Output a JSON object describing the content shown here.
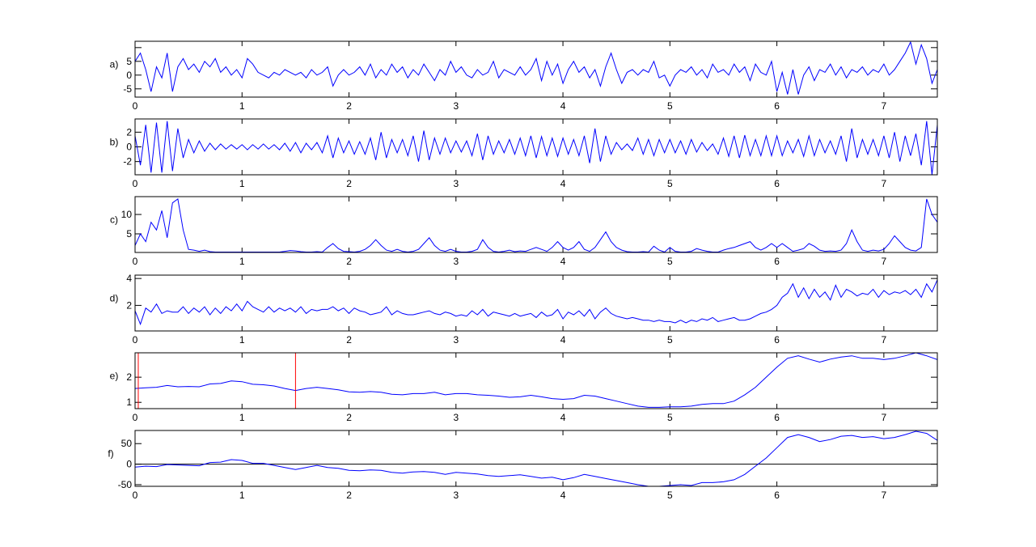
{
  "chart_data": [
    {
      "type": "line",
      "ylabel": "a)",
      "xlim": [
        0,
        7.5
      ],
      "ylim": [
        -8,
        12.3
      ],
      "xticks": [
        0,
        1,
        2,
        3,
        4,
        5,
        6,
        7
      ],
      "yticks": [
        -5,
        0,
        5
      ],
      "color": "#0000ff",
      "x_start": 0,
      "x_step": 0.05,
      "values": [
        5,
        8,
        2,
        -6,
        3,
        -1,
        8,
        -6,
        3,
        6,
        2,
        4,
        1,
        5,
        3,
        6,
        1,
        3,
        0,
        2,
        -1,
        6,
        4,
        1,
        0,
        -1,
        1,
        0,
        2,
        1,
        0,
        1,
        -1,
        2,
        0,
        1,
        3,
        -4,
        0,
        2,
        0,
        1,
        3,
        0,
        4,
        -1,
        2,
        0,
        4,
        1,
        3,
        -1,
        2,
        0,
        4,
        1,
        -2,
        2,
        0,
        5,
        1,
        3,
        0,
        -1,
        2,
        0,
        1,
        5,
        -1,
        2,
        1,
        0,
        3,
        0,
        2,
        6,
        -2,
        5,
        0,
        4,
        -3,
        2,
        5,
        1,
        3,
        -1,
        2,
        -4,
        3,
        8,
        2,
        -3,
        1,
        2,
        0,
        2,
        1,
        5,
        -1,
        0,
        -4,
        0,
        2,
        1,
        3,
        0,
        2,
        -1,
        4,
        1,
        2,
        0,
        4,
        1,
        3,
        -2,
        4,
        1,
        0,
        5,
        -6,
        1,
        -7,
        2,
        -7,
        0,
        3,
        -2,
        2,
        1,
        4,
        0,
        3,
        -1,
        2,
        1,
        3,
        0,
        2,
        1,
        4,
        0,
        2,
        5,
        8,
        12,
        4,
        11,
        6,
        -3,
        2
      ]
    },
    {
      "type": "line",
      "ylabel": "b)",
      "xlim": [
        0,
        7.5
      ],
      "ylim": [
        -3.8,
        3.8
      ],
      "xticks": [
        0,
        1,
        2,
        3,
        4,
        5,
        6,
        7
      ],
      "yticks": [
        -2,
        0,
        2
      ],
      "color": "#0000ff",
      "x_start": 0,
      "x_step": 0.05,
      "values": [
        1.5,
        -2.5,
        3,
        -3.5,
        3.3,
        -3.5,
        3.5,
        -3.3,
        2.5,
        -1.5,
        1,
        -0.8,
        0.8,
        -0.6,
        0.5,
        -0.4,
        0.4,
        -0.3,
        0.3,
        -0.3,
        0.3,
        -0.4,
        0.3,
        -0.3,
        0.4,
        -0.3,
        0.3,
        -0.4,
        0.5,
        -0.6,
        0.6,
        -0.8,
        0.5,
        -0.4,
        0.6,
        -0.8,
        1.5,
        -1.5,
        1.2,
        -0.8,
        0.8,
        -1,
        0.7,
        -1,
        1.2,
        -1.8,
        2,
        -1.5,
        1,
        -0.8,
        1,
        -1.2,
        1.5,
        -2,
        2.2,
        -1.8,
        1.2,
        -1,
        1.2,
        -0.8,
        0.8,
        -0.7,
        0.8,
        -1.2,
        1.8,
        -1.8,
        1.5,
        -1,
        0.8,
        -0.8,
        1,
        -1,
        1.2,
        -1.2,
        1.5,
        -1.5,
        1.4,
        -1.2,
        1.2,
        -1.3,
        1.2,
        -1,
        1,
        -1.2,
        1.5,
        -2.2,
        2.5,
        -2,
        1.5,
        -1,
        0.6,
        -0.4,
        0.4,
        -0.5,
        1.2,
        -1,
        1,
        -1.2,
        1,
        -0.8,
        1,
        -0.8,
        0.8,
        -1,
        1,
        -0.7,
        0.6,
        -0.5,
        0.4,
        -1,
        1.2,
        -1.3,
        1.5,
        -1.5,
        1.6,
        -1.2,
        1,
        -1.2,
        1.5,
        -1.2,
        1.5,
        -1.2,
        0.8,
        -0.8,
        1,
        -1.3,
        1.5,
        -1.2,
        1,
        -0.8,
        0.8,
        -1,
        1.5,
        -2,
        2.5,
        -1.5,
        1,
        -1,
        1,
        -1.2,
        1.5,
        -1.5,
        2,
        -2,
        1.5,
        -1.2,
        1.8,
        -2.5,
        3.5,
        -3.8,
        3
      ]
    },
    {
      "type": "line",
      "ylabel": "c)",
      "xlim": [
        0,
        7.5
      ],
      "ylim": [
        0.2,
        14.6
      ],
      "xticks": [
        0,
        1,
        2,
        3,
        4,
        5,
        6,
        7
      ],
      "yticks": [
        5,
        10
      ],
      "color": "#0000ff",
      "x_start": 0,
      "x_step": 0.05,
      "values": [
        2,
        5,
        3,
        8,
        6,
        11,
        4,
        13,
        14,
        6,
        1,
        0.8,
        0.5,
        0.8,
        0.4,
        0.3,
        0.3,
        0.3,
        0.3,
        0.3,
        0.3,
        0.3,
        0.3,
        0.3,
        0.3,
        0.3,
        0.3,
        0.3,
        0.5,
        0.7,
        0.6,
        0.4,
        0.3,
        0.3,
        0.4,
        0.3,
        1.5,
        2.5,
        1.2,
        0.5,
        0.4,
        0.3,
        0.5,
        1,
        2,
        3.5,
        2,
        0.8,
        0.5,
        1,
        0.5,
        0.3,
        0.5,
        1,
        2.5,
        4,
        2,
        0.8,
        0.5,
        1,
        0.5,
        0.3,
        0.3,
        0.5,
        1,
        3.5,
        1.5,
        0.5,
        0.3,
        0.5,
        0.8,
        0.4,
        0.6,
        0.5,
        1,
        1.5,
        1,
        0.5,
        1.5,
        3,
        1.5,
        0.8,
        1.5,
        3,
        1,
        0.5,
        1.5,
        3.5,
        5.5,
        3,
        1.5,
        0.8,
        0.4,
        0.3,
        0.3,
        0.4,
        0.3,
        1.8,
        0.8,
        0.3,
        1.5,
        0.5,
        0.3,
        0.3,
        0.5,
        1.2,
        0.8,
        0.5,
        0.3,
        0.3,
        0.8,
        1.2,
        1.5,
        2,
        2.5,
        3,
        1.5,
        0.8,
        1.5,
        2.5,
        1.5,
        2.5,
        1.5,
        0.5,
        0.8,
        1.2,
        2.5,
        1.8,
        0.8,
        0.5,
        0.6,
        0.5,
        0.8,
        2.5,
        6,
        3,
        0.8,
        0.5,
        0.8,
        0.6,
        1,
        2.5,
        4.5,
        3,
        1.5,
        0.8,
        0.6,
        1.5,
        14,
        10,
        8
      ]
    },
    {
      "type": "line",
      "ylabel": "d)",
      "xlim": [
        0,
        7.5
      ],
      "ylim": [
        0.1,
        4.25
      ],
      "xticks": [
        0,
        1,
        2,
        3,
        4,
        5,
        6,
        7
      ],
      "yticks": [
        2,
        4
      ],
      "color": "#0000ff",
      "x_start": 0,
      "x_step": 0.05,
      "values": [
        1.6,
        0.6,
        1.8,
        1.5,
        2.1,
        1.4,
        1.6,
        1.5,
        1.5,
        1.9,
        1.4,
        1.8,
        1.5,
        1.9,
        1.3,
        1.8,
        1.4,
        1.9,
        1.6,
        2.1,
        1.6,
        2.3,
        1.9,
        1.7,
        1.5,
        1.9,
        1.5,
        1.8,
        1.6,
        1.8,
        1.5,
        1.9,
        1.4,
        1.7,
        1.6,
        1.7,
        1.7,
        1.9,
        1.6,
        1.8,
        1.4,
        1.8,
        1.6,
        1.5,
        1.3,
        1.4,
        1.5,
        1.9,
        1.3,
        1.6,
        1.4,
        1.3,
        1.3,
        1.4,
        1.5,
        1.6,
        1.4,
        1.3,
        1.5,
        1.4,
        1.2,
        1.3,
        1.2,
        1.6,
        1.3,
        1.7,
        1.2,
        1.5,
        1.4,
        1.3,
        1.2,
        1.4,
        1.2,
        1.3,
        1.4,
        1.1,
        1.5,
        1.2,
        1.3,
        1.7,
        1.0,
        1.5,
        1.3,
        1.6,
        1.2,
        1.7,
        1.0,
        1.5,
        1.8,
        1.4,
        1.2,
        1.1,
        1.0,
        1.1,
        1.0,
        0.9,
        0.9,
        0.8,
        0.9,
        0.8,
        0.8,
        0.7,
        0.9,
        0.7,
        0.9,
        0.8,
        1.0,
        0.9,
        1.1,
        0.8,
        0.9,
        1.0,
        1.1,
        0.9,
        0.9,
        1.0,
        1.2,
        1.4,
        1.5,
        1.7,
        2.0,
        2.6,
        2.9,
        3.6,
        2.6,
        3.3,
        2.5,
        3.2,
        2.6,
        3.0,
        2.4,
        3.5,
        2.6,
        3.2,
        3.0,
        2.7,
        2.9,
        2.8,
        3.2,
        2.6,
        3.1,
        2.8,
        3.0,
        2.9,
        3.1,
        2.8,
        3.2,
        2.6,
        3.6,
        3.0,
        3.9
      ]
    },
    {
      "type": "line",
      "ylabel": "e)",
      "xlim": [
        0,
        7.5
      ],
      "ylim": [
        0.75,
        2.97
      ],
      "xticks": [
        0,
        1,
        2,
        3,
        4,
        5,
        6,
        7
      ],
      "yticks": [
        1,
        2
      ],
      "color": "#0000ff",
      "x_start": 0,
      "x_step": 0.1,
      "values": [
        1.55,
        1.58,
        1.6,
        1.67,
        1.62,
        1.63,
        1.62,
        1.73,
        1.75,
        1.85,
        1.82,
        1.72,
        1.7,
        1.65,
        1.55,
        1.47,
        1.55,
        1.6,
        1.55,
        1.5,
        1.42,
        1.4,
        1.43,
        1.4,
        1.32,
        1.3,
        1.35,
        1.35,
        1.4,
        1.3,
        1.35,
        1.35,
        1.3,
        1.28,
        1.25,
        1.2,
        1.22,
        1.28,
        1.22,
        1.15,
        1.12,
        1.15,
        1.28,
        1.25,
        1.15,
        1.05,
        0.95,
        0.85,
        0.8,
        0.8,
        0.82,
        0.82,
        0.85,
        0.92,
        0.95,
        0.95,
        1.05,
        1.3,
        1.6,
        2.0,
        2.4,
        2.75,
        2.85,
        2.72,
        2.6,
        2.72,
        2.8,
        2.85,
        2.75,
        2.75,
        2.7,
        2.75,
        2.85,
        2.97,
        2.85,
        2.7
      ],
      "markers": {
        "x": [
          0.03,
          1.5
        ],
        "color": "#ff0000"
      }
    },
    {
      "type": "line",
      "ylabel": "f)",
      "xlim": [
        0,
        7.5
      ],
      "ylim": [
        -54,
        82
      ],
      "xticks": [
        0,
        1,
        2,
        3,
        4,
        5,
        6,
        7
      ],
      "yticks": [
        -50,
        0,
        50
      ],
      "color": "#0000ff",
      "x_start": 0,
      "x_step": 0.1,
      "values": [
        -7,
        -5,
        -6,
        -1,
        -2,
        -3,
        -4,
        4,
        5,
        11,
        9,
        2,
        2,
        -3,
        -8,
        -13,
        -8,
        -3,
        -8,
        -10,
        -15,
        -16,
        -14,
        -15,
        -20,
        -22,
        -19,
        -18,
        -20,
        -25,
        -20,
        -22,
        -24,
        -28,
        -30,
        -28,
        -26,
        -30,
        -34,
        -32,
        -38,
        -33,
        -25,
        -30,
        -35,
        -40,
        -45,
        -50,
        -54,
        -54,
        -52,
        -50,
        -52,
        -45,
        -45,
        -43,
        -38,
        -25,
        -5,
        15,
        40,
        65,
        72,
        65,
        55,
        60,
        68,
        70,
        65,
        67,
        62,
        65,
        72,
        80,
        75,
        58
      ],
      "zero_line": {
        "y": 0,
        "color": "#000000"
      }
    }
  ]
}
